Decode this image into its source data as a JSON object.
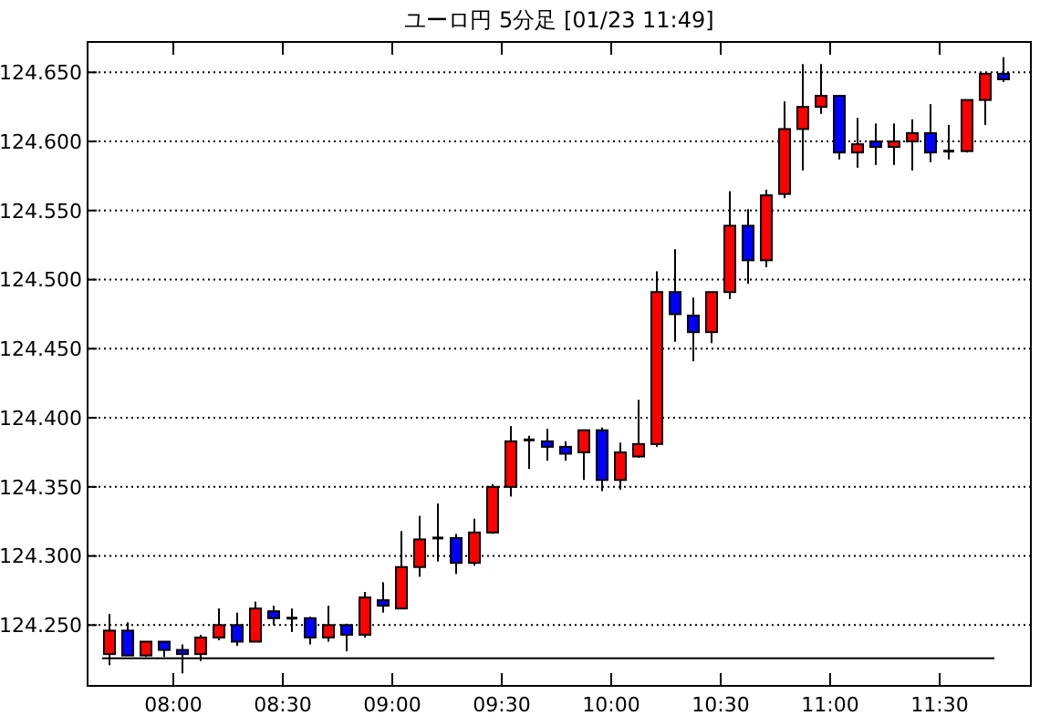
{
  "chart_data": {
    "type": "candlestick",
    "title": "ユーロ円 5分足 [01/23 11:49]",
    "x": [
      7.7083,
      7.7917,
      7.875,
      7.9583,
      8.0417,
      8.125,
      8.2083,
      8.2917,
      8.375,
      8.4583,
      8.5417,
      8.625,
      8.7083,
      8.7917,
      8.875,
      8.9583,
      9.0417,
      9.125,
      9.2083,
      9.2917,
      9.375,
      9.4583,
      9.5417,
      9.625,
      9.7083,
      9.7917,
      9.875,
      9.9583,
      10.0417,
      10.125,
      10.2083,
      10.2917,
      10.375,
      10.4583,
      10.5417,
      10.625,
      10.7083,
      10.7917,
      10.875,
      10.9583,
      11.0417,
      11.125,
      11.2083,
      11.2917,
      11.375,
      11.4583,
      11.5417,
      11.625,
      11.7083,
      11.7917
    ],
    "ohlc": [
      [
        124.229,
        124.258,
        124.221,
        124.246
      ],
      [
        124.246,
        124.252,
        124.228,
        124.228
      ],
      [
        124.228,
        124.238,
        124.227,
        124.238
      ],
      [
        124.238,
        124.238,
        124.227,
        124.232
      ],
      [
        124.232,
        124.236,
        124.215,
        124.229
      ],
      [
        124.229,
        124.243,
        124.224,
        124.241
      ],
      [
        124.241,
        124.262,
        124.239,
        124.25
      ],
      [
        124.25,
        124.259,
        124.235,
        124.238
      ],
      [
        124.238,
        124.267,
        124.238,
        124.262
      ],
      [
        124.26,
        124.264,
        124.25,
        124.255
      ],
      [
        124.255,
        124.262,
        124.245,
        124.255
      ],
      [
        124.255,
        124.256,
        124.236,
        124.241
      ],
      [
        124.241,
        124.264,
        124.238,
        124.25
      ],
      [
        124.25,
        124.251,
        124.231,
        124.243
      ],
      [
        124.243,
        124.274,
        124.241,
        124.27
      ],
      [
        124.268,
        124.281,
        124.259,
        124.264
      ],
      [
        124.262,
        124.318,
        124.262,
        124.292
      ],
      [
        124.292,
        124.329,
        124.285,
        124.312
      ],
      [
        124.313,
        124.338,
        124.296,
        124.313
      ],
      [
        124.313,
        124.316,
        124.287,
        124.295
      ],
      [
        124.295,
        124.327,
        124.293,
        124.317
      ],
      [
        124.317,
        124.352,
        124.316,
        124.35
      ],
      [
        124.35,
        124.394,
        124.343,
        124.383
      ],
      [
        124.384,
        124.387,
        124.363,
        124.384
      ],
      [
        124.383,
        124.392,
        124.369,
        124.379
      ],
      [
        124.379,
        124.383,
        124.369,
        124.374
      ],
      [
        124.375,
        124.391,
        124.355,
        124.391
      ],
      [
        124.391,
        124.393,
        124.347,
        124.355
      ],
      [
        124.355,
        124.382,
        124.348,
        124.375
      ],
      [
        124.372,
        124.413,
        124.371,
        124.381
      ],
      [
        124.381,
        124.506,
        124.379,
        124.491
      ],
      [
        124.491,
        124.522,
        124.455,
        124.475
      ],
      [
        124.474,
        124.487,
        124.441,
        124.462
      ],
      [
        124.462,
        124.491,
        124.454,
        124.491
      ],
      [
        124.491,
        124.564,
        124.486,
        124.539
      ],
      [
        124.539,
        124.551,
        124.497,
        124.514
      ],
      [
        124.514,
        124.565,
        124.509,
        124.561
      ],
      [
        124.562,
        124.629,
        124.559,
        124.609
      ],
      [
        124.609,
        124.656,
        124.579,
        124.625
      ],
      [
        124.625,
        124.656,
        124.62,
        124.633
      ],
      [
        124.633,
        124.633,
        124.587,
        124.592
      ],
      [
        124.592,
        124.617,
        124.581,
        124.598
      ],
      [
        124.6,
        124.613,
        124.583,
        124.596
      ],
      [
        124.596,
        124.613,
        124.583,
        124.6
      ],
      [
        124.6,
        124.616,
        124.579,
        124.606
      ],
      [
        124.606,
        124.627,
        124.585,
        124.592
      ],
      [
        124.593,
        124.612,
        124.587,
        124.593
      ],
      [
        124.593,
        124.63,
        124.592,
        124.63
      ],
      [
        124.63,
        124.649,
        124.612,
        124.649
      ],
      [
        124.649,
        124.661,
        124.643,
        124.645
      ]
    ],
    "colors": [
      "#ff0000",
      "#0000ff",
      "#ff0000",
      "#0000ff",
      "#0000ff",
      "#ff0000",
      "#ff0000",
      "#0000ff",
      "#ff0000",
      "#0000ff",
      "#000000",
      "#0000ff",
      "#ff0000",
      "#0000ff",
      "#ff0000",
      "#0000ff",
      "#ff0000",
      "#ff0000",
      "#000000",
      "#0000ff",
      "#ff0000",
      "#ff0000",
      "#ff0000",
      "#000000",
      "#0000ff",
      "#0000ff",
      "#ff0000",
      "#0000ff",
      "#ff0000",
      "#ff0000",
      "#ff0000",
      "#0000ff",
      "#0000ff",
      "#ff0000",
      "#ff0000",
      "#0000ff",
      "#ff0000",
      "#ff0000",
      "#ff0000",
      "#ff0000",
      "#0000ff",
      "#ff0000",
      "#0000ff",
      "#ff0000",
      "#ff0000",
      "#0000ff",
      "#000000",
      "#ff0000",
      "#ff0000",
      "#0000ff"
    ],
    "xlim": [
      7.6083,
      11.9167
    ],
    "xticks": [
      {
        "value": 8,
        "label": "08:00"
      },
      {
        "value": 8.5,
        "label": "08:30"
      },
      {
        "value": 9,
        "label": "09:00"
      },
      {
        "value": 9.5,
        "label": "09:30"
      },
      {
        "value": 10,
        "label": "10:00"
      },
      {
        "value": 10.5,
        "label": "10:30"
      },
      {
        "value": 11,
        "label": "11:00"
      },
      {
        "value": 11.5,
        "label": "11:30"
      }
    ],
    "ylim": [
      124.206,
      124.672
    ],
    "yticks": [
      {
        "value": 124.25,
        "label": "124.250"
      },
      {
        "value": 124.3,
        "label": "124.300"
      },
      {
        "value": 124.35,
        "label": "124.350"
      },
      {
        "value": 124.4,
        "label": "124.400"
      },
      {
        "value": 124.45,
        "label": "124.450"
      },
      {
        "value": 124.5,
        "label": "124.500"
      },
      {
        "value": 124.55,
        "label": "124.550"
      },
      {
        "value": 124.6,
        "label": "124.600"
      },
      {
        "value": 124.65,
        "label": "124.650"
      }
    ],
    "grid": "y",
    "ref_lines": [
      {
        "axis": "y",
        "value": 124.226,
        "color": "#000000",
        "line_style": "solid"
      }
    ]
  }
}
